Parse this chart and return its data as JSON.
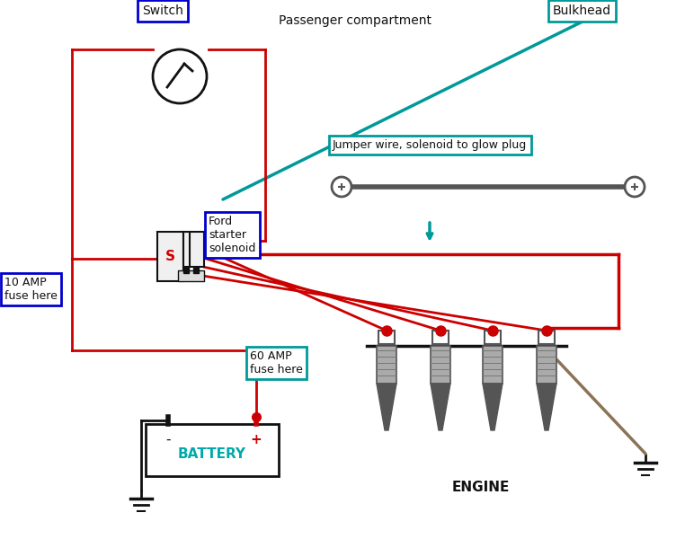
{
  "bg": "#ffffff",
  "red": "#cc0000",
  "teal": "#009999",
  "blue": "#0000cc",
  "black": "#111111",
  "tan": "#8B7355",
  "gray": "#888888",
  "darkgray": "#555555",
  "lightgray": "#aaaaaa",
  "battery_color": "#00aaaa",
  "passenger_text": "Passenger compartment",
  "bulkhead_text": "Bulkhead",
  "switch_text": "Switch",
  "ford_text": "Ford\nstarter\nsolenoid",
  "fuse10_text": "10 AMP\nfuse here",
  "fuse60_text": "60 AMP\nfuse here",
  "battery_text": "BATTERY",
  "engine_text": "ENGINE",
  "jumper_text": "Jumper wire, solenoid to glow plug",
  "solenoid_s": "S"
}
